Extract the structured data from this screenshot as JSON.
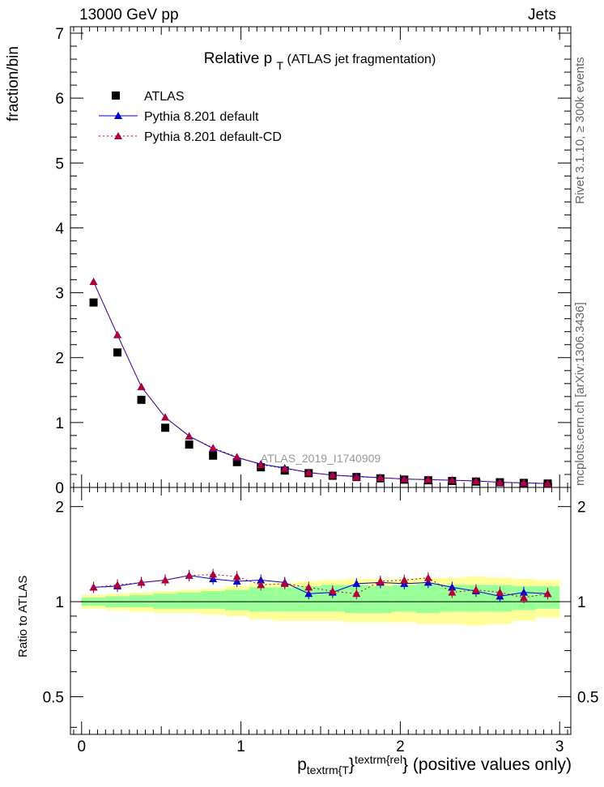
{
  "header": {
    "left": "13000 GeV pp",
    "right": "Jets"
  },
  "side_labels": {
    "rivet": "Rivet 3.1.10, ≥ 300k events",
    "mcplots": "mcplots.cern.ch [arXiv:1306.3436]"
  },
  "watermark": "ATLAS_2019_I1740909",
  "xlabel": {
    "main": "p",
    "sub": "textrm{T",
    "brace": "}",
    "sup": "textrm{rel",
    "rest": "} (positive values only)"
  },
  "chart_data": [
    {
      "type": "scatter",
      "panel": "main",
      "title": "Relative p",
      "title_sub": "T",
      "title_rest": "(ATLAS jet fragmentation)",
      "ylabel": "fraction/bin",
      "xlim": [
        -0.07,
        3.07
      ],
      "ylim": [
        0,
        7.1
      ],
      "x_ticks": [
        0,
        1,
        2,
        3
      ],
      "y_ticks": [
        0,
        1,
        2,
        3,
        4,
        5,
        6,
        7
      ],
      "y_tick_labels": [
        "0",
        "1",
        "2",
        "3",
        "4",
        "5",
        "6",
        "7"
      ],
      "x": [
        0.075,
        0.225,
        0.375,
        0.525,
        0.675,
        0.825,
        0.975,
        1.125,
        1.275,
        1.425,
        1.575,
        1.725,
        1.875,
        2.025,
        2.175,
        2.325,
        2.475,
        2.625,
        2.775,
        2.925
      ],
      "series": [
        {
          "name": "ATLAS",
          "marker": "square",
          "color": "#000000",
          "values": [
            2.85,
            2.08,
            1.35,
            0.92,
            0.66,
            0.49,
            0.39,
            0.31,
            0.26,
            0.22,
            0.18,
            0.16,
            0.14,
            0.12,
            0.11,
            0.1,
            0.09,
            0.08,
            0.07,
            0.06
          ]
        },
        {
          "name": "Pythia 8.201 default",
          "marker": "triangle",
          "color": "#0000cc",
          "line": "solid",
          "values": [
            3.17,
            2.35,
            1.55,
            1.08,
            0.79,
            0.6,
            0.46,
            0.36,
            0.3,
            0.23,
            0.19,
            0.17,
            0.15,
            0.13,
            0.12,
            0.11,
            0.1,
            0.08,
            0.07,
            0.06
          ]
        },
        {
          "name": "Pythia 8.201 default-CD",
          "marker": "triangle",
          "color": "#b0003a",
          "line": "dotted",
          "values": [
            3.17,
            2.35,
            1.55,
            1.08,
            0.79,
            0.61,
            0.47,
            0.35,
            0.29,
            0.23,
            0.19,
            0.16,
            0.15,
            0.13,
            0.12,
            0.11,
            0.1,
            0.08,
            0.07,
            0.06
          ]
        }
      ]
    },
    {
      "type": "line",
      "panel": "ratio",
      "ylabel": "Ratio to ATLAS",
      "xlim": [
        -0.07,
        3.07
      ],
      "ylim": [
        0.38,
        2.3
      ],
      "log_y": true,
      "x_ticks": [
        0,
        1,
        2,
        3
      ],
      "x_tick_labels": [
        "0",
        "1",
        "2",
        "3"
      ],
      "y_ticks": [
        0.5,
        1,
        2
      ],
      "y_tick_labels": [
        "0.5",
        "1",
        "2"
      ],
      "x": [
        0.075,
        0.225,
        0.375,
        0.525,
        0.675,
        0.825,
        0.975,
        1.125,
        1.275,
        1.425,
        1.575,
        1.725,
        1.875,
        2.025,
        2.175,
        2.325,
        2.475,
        2.625,
        2.775,
        2.925
      ],
      "bands": [
        {
          "name": "",
          "color": "#ffff99",
          "low": [
            0.95,
            0.94,
            0.93,
            0.92,
            0.92,
            0.91,
            0.9,
            0.88,
            0.87,
            0.87,
            0.87,
            0.86,
            0.86,
            0.86,
            0.85,
            0.85,
            0.84,
            0.85,
            0.87,
            0.89
          ],
          "high": [
            1.05,
            1.06,
            1.07,
            1.08,
            1.09,
            1.1,
            1.12,
            1.14,
            1.15,
            1.16,
            1.17,
            1.18,
            1.18,
            1.18,
            1.19,
            1.19,
            1.2,
            1.19,
            1.18,
            1.17
          ]
        },
        {
          "name": "",
          "color": "#99ff99",
          "low": [
            0.97,
            0.96,
            0.96,
            0.95,
            0.95,
            0.95,
            0.94,
            0.93,
            0.93,
            0.93,
            0.93,
            0.92,
            0.92,
            0.93,
            0.92,
            0.93,
            0.93,
            0.93,
            0.94,
            0.95
          ],
          "high": [
            1.03,
            1.04,
            1.05,
            1.06,
            1.07,
            1.08,
            1.09,
            1.11,
            1.11,
            1.12,
            1.13,
            1.13,
            1.12,
            1.13,
            1.14,
            1.13,
            1.13,
            1.13,
            1.12,
            1.12
          ]
        }
      ],
      "series": [
        {
          "name": "Pythia 8.201 default",
          "color": "#0000cc",
          "line": "solid",
          "values": [
            1.11,
            1.12,
            1.15,
            1.17,
            1.21,
            1.18,
            1.16,
            1.17,
            1.15,
            1.06,
            1.07,
            1.14,
            1.15,
            1.14,
            1.15,
            1.11,
            1.08,
            1.04,
            1.07,
            1.06
          ]
        },
        {
          "name": "Pythia 8.201 default-CD",
          "color": "#b0003a",
          "line": "dotted",
          "values": [
            1.11,
            1.13,
            1.15,
            1.17,
            1.21,
            1.22,
            1.2,
            1.13,
            1.14,
            1.11,
            1.08,
            1.06,
            1.16,
            1.17,
            1.19,
            1.07,
            1.09,
            1.07,
            1.03,
            1.06
          ]
        }
      ]
    }
  ]
}
